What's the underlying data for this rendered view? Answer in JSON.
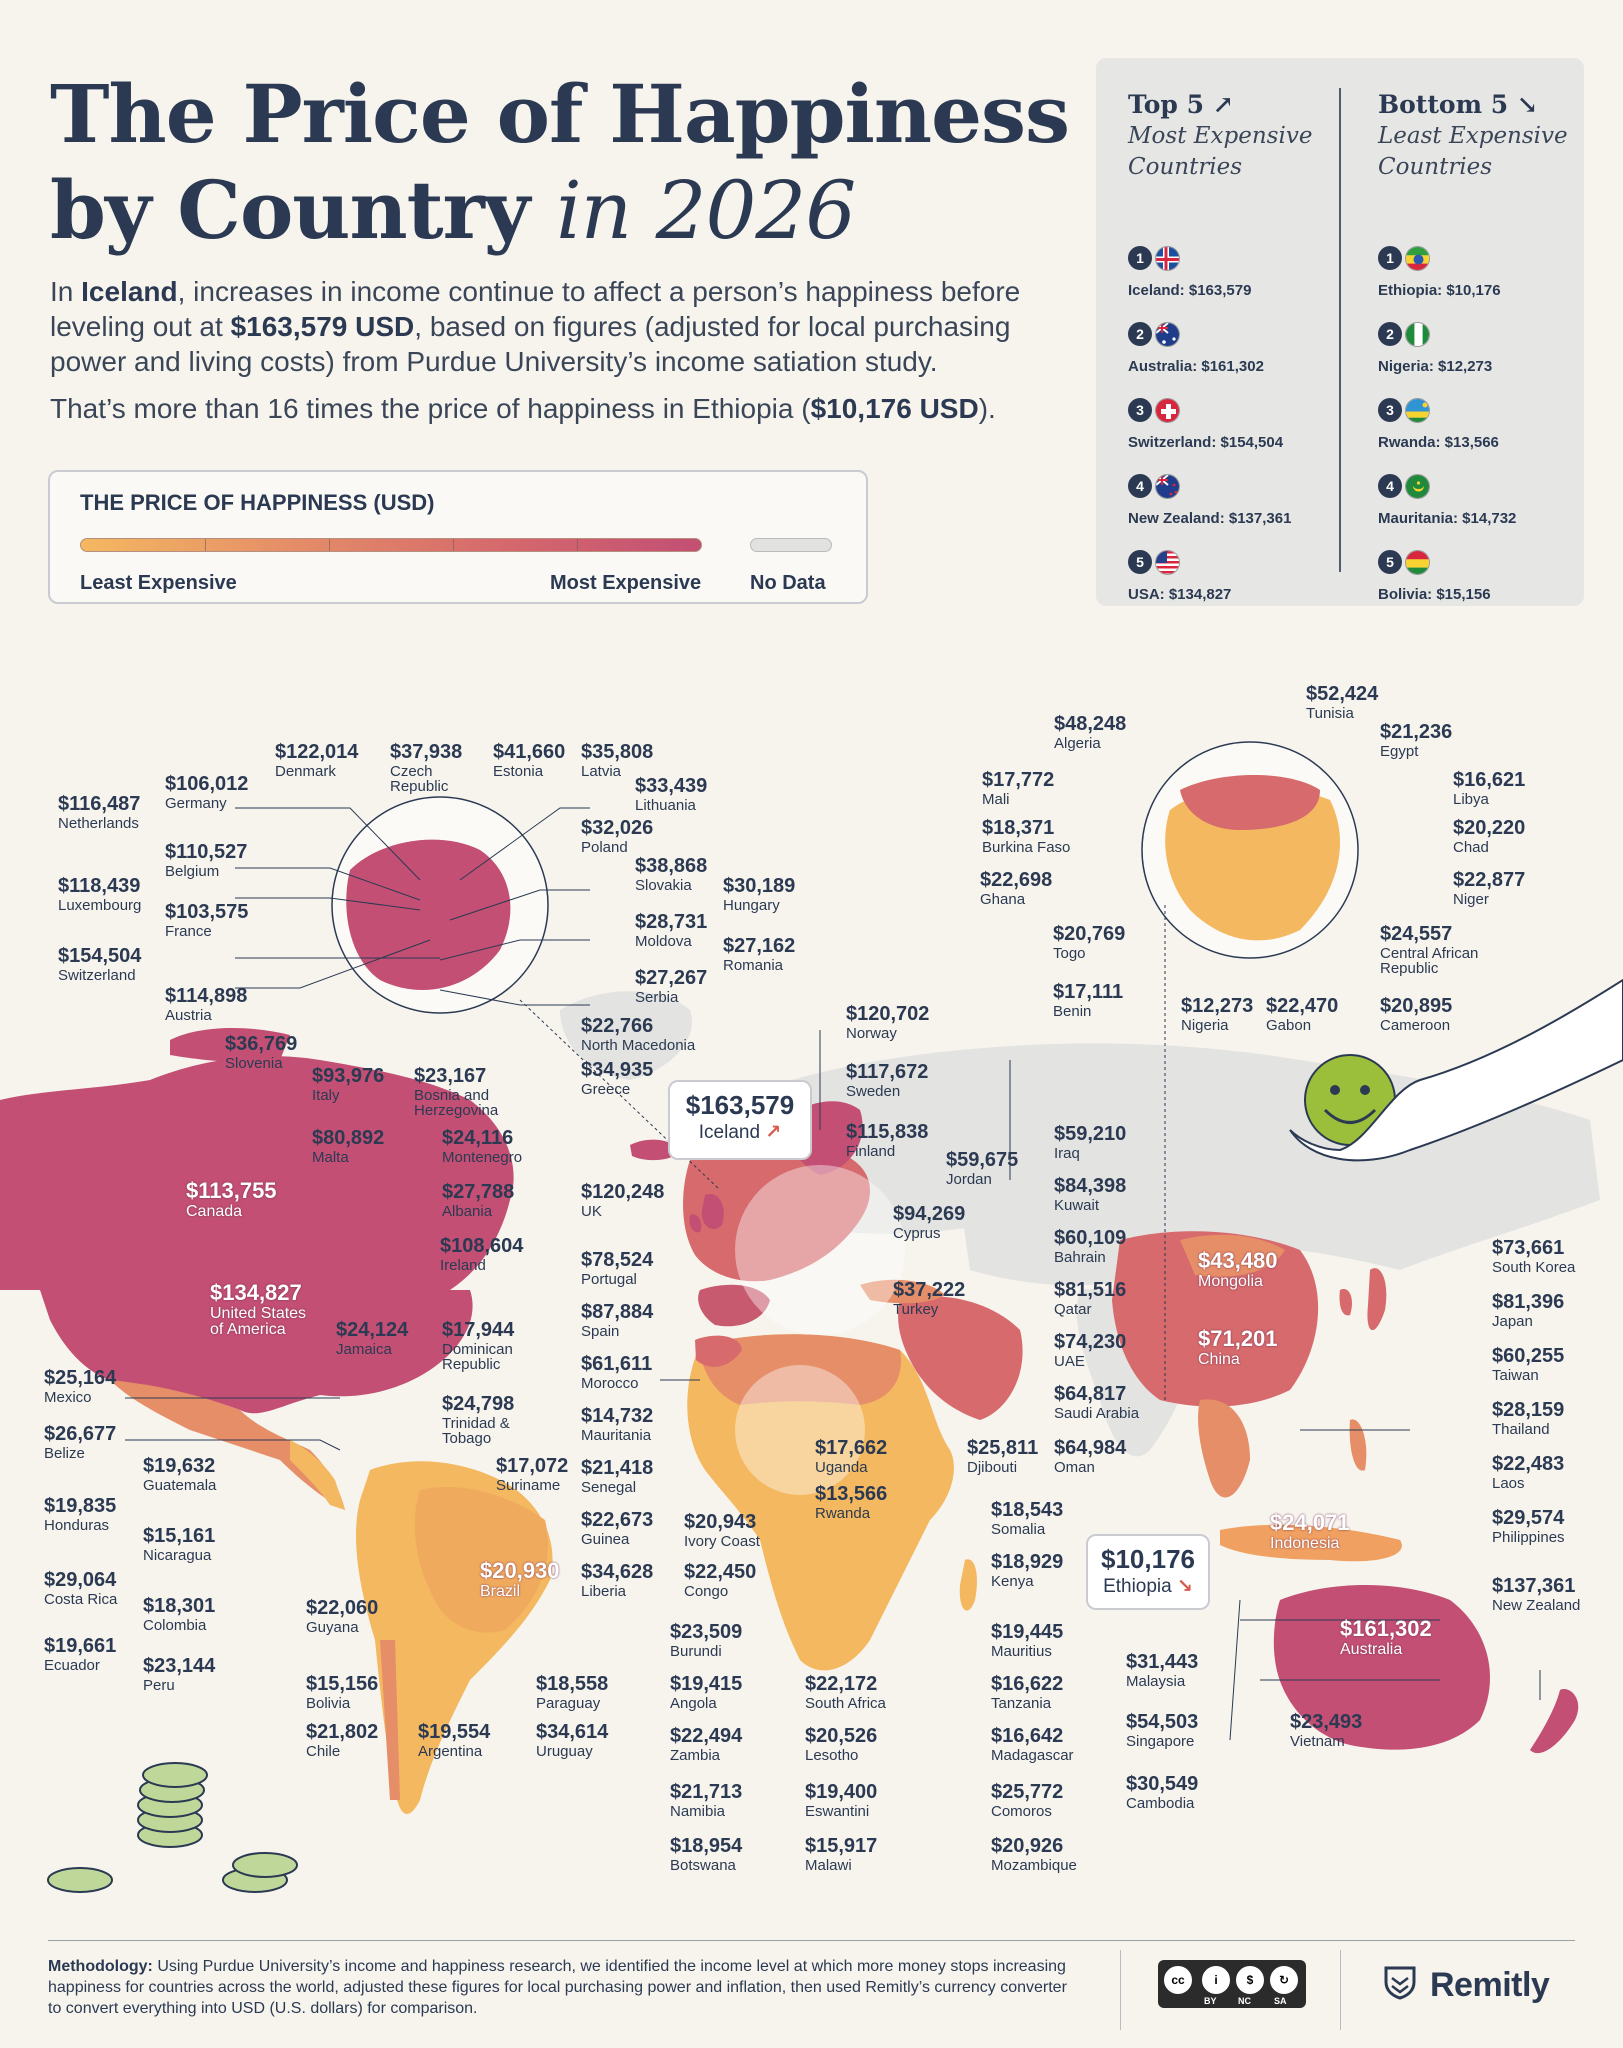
{
  "header": {
    "title_line1": "The Price of Happiness",
    "title_line2": "by Country",
    "title_year": "in 2026",
    "intro": {
      "p1_a": "In ",
      "p1_country": "Iceland",
      "p1_b": ", increases in income continue to affect a person’s happiness before leveling out at ",
      "p1_value": "$163,579 USD",
      "p1_c": ", based on figures (adjusted for local purchasing power and living costs) from Purdue University’s income satiation study.",
      "p2_a": "That’s more than 16 times the price of happiness in Ethiopia (",
      "p2_value": "$10,176 USD",
      "p2_b": ")."
    }
  },
  "legend": {
    "title": "THE PRICE OF HAPPINESS (USD)",
    "least": "Least Expensive",
    "most": "Most Expensive",
    "nodata": "No Data",
    "colors": [
      "#f4b860",
      "#e58e68",
      "#d66a6c",
      "#c34f74"
    ],
    "nodata_color": "#e2e2e0"
  },
  "rankings": {
    "top": {
      "heading": "Top 5 ↗",
      "sub1": "Most Expensive",
      "sub2": "Countries",
      "items": [
        {
          "rank": "1",
          "text": "Iceland: $163,579"
        },
        {
          "rank": "2",
          "text": "Australia: $161,302"
        },
        {
          "rank": "3",
          "text": "Switzerland: $154,504"
        },
        {
          "rank": "4",
          "text": "New Zealand: $137,361"
        },
        {
          "rank": "5",
          "text": "USA: $134,827"
        }
      ]
    },
    "bottom": {
      "heading": "Bottom 5 ↘",
      "sub1": "Least Expensive",
      "sub2": "Countries",
      "items": [
        {
          "rank": "1",
          "text": "Ethiopia: $10,176"
        },
        {
          "rank": "2",
          "text": "Nigeria: $12,273"
        },
        {
          "rank": "3",
          "text": "Rwanda: $13,566"
        },
        {
          "rank": "4",
          "text": "Mauritania: $14,732"
        },
        {
          "rank": "5",
          "text": "Bolivia: $15,156"
        }
      ]
    }
  },
  "callouts": {
    "iceland": {
      "value": "$163,579",
      "name": "Iceland",
      "arrow": "↗"
    },
    "ethiopia": {
      "value": "$10,176",
      "name": "Ethiopia",
      "arrow": "↘"
    }
  },
  "countries": [
    {
      "id": "denmark",
      "value": "$122,014",
      "name": "Denmark"
    },
    {
      "id": "czech",
      "value": "$37,938",
      "name": "Czech Republic"
    },
    {
      "id": "estonia",
      "value": "$41,660",
      "name": "Estonia"
    },
    {
      "id": "latvia",
      "value": "$35,808",
      "name": "Latvia"
    },
    {
      "id": "lithuania",
      "value": "$33,439",
      "name": "Lithuania"
    },
    {
      "id": "poland",
      "value": "$32,026",
      "name": "Poland"
    },
    {
      "id": "slovakia",
      "value": "$38,868",
      "name": "Slovakia"
    },
    {
      "id": "hungary",
      "value": "$30,189",
      "name": "Hungary"
    },
    {
      "id": "moldova",
      "value": "$28,731",
      "name": "Moldova"
    },
    {
      "id": "romania",
      "value": "$27,162",
      "name": "Romania"
    },
    {
      "id": "serbia",
      "value": "$27,267",
      "name": "Serbia"
    },
    {
      "id": "northmacedonia",
      "value": "$22,766",
      "name": "North Macedonia"
    },
    {
      "id": "greece",
      "value": "$34,935",
      "name": "Greece"
    },
    {
      "id": "netherlands",
      "value": "$116,487",
      "name": "Netherlands"
    },
    {
      "id": "germany",
      "value": "$106,012",
      "name": "Germany"
    },
    {
      "id": "belgium",
      "value": "$110,527",
      "name": "Belgium"
    },
    {
      "id": "luxembourg",
      "value": "$118,439",
      "name": "Luxembourg"
    },
    {
      "id": "france",
      "value": "$103,575",
      "name": "France"
    },
    {
      "id": "switzerland",
      "value": "$154,504",
      "name": "Switzerland"
    },
    {
      "id": "austria",
      "value": "$114,898",
      "name": "Austria"
    },
    {
      "id": "slovenia",
      "value": "$36,769",
      "name": "Slovenia"
    },
    {
      "id": "italy",
      "value": "$93,976",
      "name": "Italy"
    },
    {
      "id": "bosnia",
      "value": "$23,167",
      "name": "Bosnia and Herzegovina"
    },
    {
      "id": "malta",
      "value": "$80,892",
      "name": "Malta"
    },
    {
      "id": "montenegro",
      "value": "$24,116",
      "name": "Montenegro"
    },
    {
      "id": "albania",
      "value": "$27,788",
      "name": "Albania"
    },
    {
      "id": "norway",
      "value": "$120,702",
      "name": "Norway"
    },
    {
      "id": "sweden",
      "value": "$117,672",
      "name": "Sweden"
    },
    {
      "id": "finland",
      "value": "$115,838",
      "name": "Finland"
    },
    {
      "id": "uk",
      "value": "$120,248",
      "name": "UK"
    },
    {
      "id": "ireland",
      "value": "$108,604",
      "name": "Ireland"
    },
    {
      "id": "portugal",
      "value": "$78,524",
      "name": "Portugal"
    },
    {
      "id": "spain",
      "value": "$87,884",
      "name": "Spain"
    },
    {
      "id": "morocco",
      "value": "$61,611",
      "name": "Morocco"
    },
    {
      "id": "mauritania",
      "value": "$14,732",
      "name": "Mauritania"
    },
    {
      "id": "senegal",
      "value": "$21,418",
      "name": "Senegal"
    },
    {
      "id": "guinea",
      "value": "$22,673",
      "name": "Guinea"
    },
    {
      "id": "liberia",
      "value": "$34,628",
      "name": "Liberia"
    },
    {
      "id": "ivorycoast",
      "value": "$20,943",
      "name": "Ivory Coast"
    },
    {
      "id": "congo",
      "value": "$22,450",
      "name": "Congo"
    },
    {
      "id": "uganda",
      "value": "$17,662",
      "name": "Uganda"
    },
    {
      "id": "rwanda",
      "value": "$13,566",
      "name": "Rwanda"
    },
    {
      "id": "djibouti",
      "value": "$25,811",
      "name": "Djibouti"
    },
    {
      "id": "somalia",
      "value": "$18,543",
      "name": "Somalia"
    },
    {
      "id": "kenya",
      "value": "$18,929",
      "name": "Kenya"
    },
    {
      "id": "mauritius",
      "value": "$19,445",
      "name": "Mauritius"
    },
    {
      "id": "tanzania",
      "value": "$16,622",
      "name": "Tanzania"
    },
    {
      "id": "madagascar",
      "value": "$16,642",
      "name": "Madagascar"
    },
    {
      "id": "comoros",
      "value": "$25,772",
      "name": "Comoros"
    },
    {
      "id": "mozambique",
      "value": "$20,926",
      "name": "Mozambique"
    },
    {
      "id": "burundi",
      "value": "$23,509",
      "name": "Burundi"
    },
    {
      "id": "angola",
      "value": "$19,415",
      "name": "Angola"
    },
    {
      "id": "zambia",
      "value": "$22,494",
      "name": "Zambia"
    },
    {
      "id": "namibia",
      "value": "$21,713",
      "name": "Namibia"
    },
    {
      "id": "botswana",
      "value": "$18,954",
      "name": "Botswana"
    },
    {
      "id": "southafrica",
      "value": "$22,172",
      "name": "South Africa"
    },
    {
      "id": "lesotho",
      "value": "$20,526",
      "name": "Lesotho"
    },
    {
      "id": "eswantini",
      "value": "$19,400",
      "name": "Eswantini"
    },
    {
      "id": "malawi",
      "value": "$15,917",
      "name": "Malawi"
    },
    {
      "id": "tunisia",
      "value": "$52,424",
      "name": "Tunisia"
    },
    {
      "id": "algeria",
      "value": "$48,248",
      "name": "Algeria"
    },
    {
      "id": "egypt",
      "value": "$21,236",
      "name": "Egypt"
    },
    {
      "id": "mali",
      "value": "$17,772",
      "name": "Mali"
    },
    {
      "id": "libya",
      "value": "$16,621",
      "name": "Libya"
    },
    {
      "id": "burkinafaso",
      "value": "$18,371",
      "name": "Burkina Faso"
    },
    {
      "id": "chad",
      "value": "$20,220",
      "name": "Chad"
    },
    {
      "id": "ghana",
      "value": "$22,698",
      "name": "Ghana"
    },
    {
      "id": "niger",
      "value": "$22,877",
      "name": "Niger"
    },
    {
      "id": "togo",
      "value": "$20,769",
      "name": "Togo"
    },
    {
      "id": "car",
      "value": "$24,557",
      "name": "Central African Republic"
    },
    {
      "id": "benin",
      "value": "$17,111",
      "name": "Benin"
    },
    {
      "id": "nigeria",
      "value": "$12,273",
      "name": "Nigeria"
    },
    {
      "id": "gabon",
      "value": "$22,470",
      "name": "Gabon"
    },
    {
      "id": "cameroon",
      "value": "$20,895",
      "name": "Cameroon"
    },
    {
      "id": "iraq",
      "value": "$59,210",
      "name": "Iraq"
    },
    {
      "id": "jordan",
      "value": "$59,675",
      "name": "Jordan"
    },
    {
      "id": "kuwait",
      "value": "$84,398",
      "name": "Kuwait"
    },
    {
      "id": "cyprus",
      "value": "$94,269",
      "name": "Cyprus"
    },
    {
      "id": "bahrain",
      "value": "$60,109",
      "name": "Bahrain"
    },
    {
      "id": "turkey",
      "value": "$37,222",
      "name": "Turkey"
    },
    {
      "id": "qatar",
      "value": "$81,516",
      "name": "Qatar"
    },
    {
      "id": "uae",
      "value": "$74,230",
      "name": "UAE"
    },
    {
      "id": "saudi",
      "value": "$64,817",
      "name": "Saudi Arabia"
    },
    {
      "id": "oman",
      "value": "$64,984",
      "name": "Oman"
    },
    {
      "id": "southkorea",
      "value": "$73,661",
      "name": "South Korea"
    },
    {
      "id": "japan",
      "value": "$81,396",
      "name": "Japan"
    },
    {
      "id": "taiwan",
      "value": "$60,255",
      "name": "Taiwan"
    },
    {
      "id": "thailand",
      "value": "$28,159",
      "name": "Thailand"
    },
    {
      "id": "laos",
      "value": "$22,483",
      "name": "Laos"
    },
    {
      "id": "philippines",
      "value": "$29,574",
      "name": "Philippines"
    },
    {
      "id": "newzealand",
      "value": "$137,361",
      "name": "New Zealand"
    },
    {
      "id": "malaysia",
      "value": "$31,443",
      "name": "Malaysia"
    },
    {
      "id": "singapore",
      "value": "$54,503",
      "name": "Singapore"
    },
    {
      "id": "vietnam",
      "value": "$23,493",
      "name": "Vietnam"
    },
    {
      "id": "cambodia",
      "value": "$30,549",
      "name": "Cambodia"
    },
    {
      "id": "mexico",
      "value": "$25,164",
      "name": "Mexico"
    },
    {
      "id": "belize",
      "value": "$26,677",
      "name": "Belize"
    },
    {
      "id": "guatemala",
      "value": "$19,632",
      "name": "Guatemala"
    },
    {
      "id": "honduras",
      "value": "$19,835",
      "name": "Honduras"
    },
    {
      "id": "nicaragua",
      "value": "$15,161",
      "name": "Nicaragua"
    },
    {
      "id": "costarica",
      "value": "$29,064",
      "name": "Costa Rica"
    },
    {
      "id": "colombia",
      "value": "$18,301",
      "name": "Colombia"
    },
    {
      "id": "ecuador",
      "value": "$19,661",
      "name": "Ecuador"
    },
    {
      "id": "peru",
      "value": "$23,144",
      "name": "Peru"
    },
    {
      "id": "jamaica",
      "value": "$24,124",
      "name": "Jamaica"
    },
    {
      "id": "dominican",
      "value": "$17,944",
      "name": "Dominican Republic"
    },
    {
      "id": "trinidad",
      "value": "$24,798",
      "name": "Trinidad & Tobago"
    },
    {
      "id": "suriname",
      "value": "$17,072",
      "name": "Suriname"
    },
    {
      "id": "guyana",
      "value": "$22,060",
      "name": "Guyana"
    },
    {
      "id": "bolivia",
      "value": "$15,156",
      "name": "Bolivia"
    },
    {
      "id": "chile",
      "value": "$21,802",
      "name": "Chile"
    },
    {
      "id": "argentina",
      "value": "$19,554",
      "name": "Argentina"
    },
    {
      "id": "paraguay",
      "value": "$18,558",
      "name": "Paraguay"
    },
    {
      "id": "uruguay",
      "value": "$34,614",
      "name": "Uruguay"
    },
    {
      "id": "canada",
      "value": "$113,755",
      "name": "Canada"
    },
    {
      "id": "usa",
      "value": "$134,827",
      "name": "United States of America"
    },
    {
      "id": "brazil",
      "value": "$20,930",
      "name": "Brazil"
    },
    {
      "id": "mongolia",
      "value": "$43,480",
      "name": "Mongolia"
    },
    {
      "id": "china",
      "value": "$71,201",
      "name": "China"
    },
    {
      "id": "indonesia",
      "value": "$24,071",
      "name": "Indonesia"
    },
    {
      "id": "australia",
      "value": "$161,302",
      "name": "Australia"
    }
  ],
  "footer": {
    "method_label": "Methodology:",
    "method_text": " Using Purdue University’s income and happiness research, we identified the income level at which more money stops increasing happiness for countries across the world, adjusted these figures for local purchasing power and inflation, then used Remitly’s currency converter to convert everything into USD (U.S. dollars) for comparison.",
    "license": {
      "by": "BY",
      "nc": "NC",
      "sa": "SA",
      "cc": "cc"
    },
    "brand": "Remitly"
  }
}
